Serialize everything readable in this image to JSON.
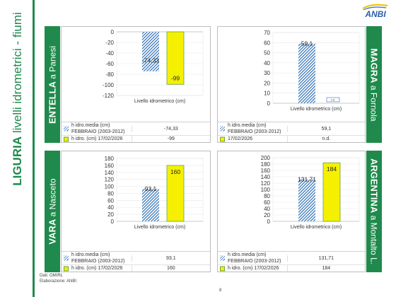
{
  "sidebar": {
    "title_bold": "LIGURIA",
    "title_rest": " livelli idrometrici - fiumi"
  },
  "footer": {
    "source": "Dati: OMIRL",
    "elaboration": "Elaborazione: ANBI",
    "page": "8"
  },
  "colors": {
    "green": "#1f8a4c",
    "blue": "#2f6fb7",
    "yellow": "#f5f000"
  },
  "chart_data": [
    {
      "type": "bar",
      "id": "entella",
      "river": "ENTELLA",
      "station": " a Panesi",
      "categories": [
        "Livello idrometrico (cm)"
      ],
      "xlabel": "Livello idrometrico (cm)",
      "ylim": [
        -120,
        0
      ],
      "yticks": [
        "0",
        "-20",
        "-40",
        "-60",
        "-80",
        "-100",
        "-120"
      ],
      "series": [
        {
          "name": "h idro.media (cm) FEBBRAIO (2003-2012)",
          "values": [
            -74.33
          ],
          "label": "-74,33"
        },
        {
          "name": "h idro. (cm) 17/02/2026",
          "values": [
            -99
          ],
          "label": "-99"
        }
      ]
    },
    {
      "type": "bar",
      "id": "magra",
      "river": "MAGRA",
      "station": " a Fornola",
      "categories": [
        "Livello idrometrico (cm)"
      ],
      "xlabel": "Livello idrometrico (cm)",
      "ylim": [
        0,
        70
      ],
      "yticks": [
        "70",
        "60",
        "50",
        "40",
        "30",
        "20",
        "10",
        "0"
      ],
      "series": [
        {
          "name": "h idro.media (cm) FEBBRAIO (2003-2012)",
          "values": [
            59.1
          ],
          "label": "59,1"
        },
        {
          "name": "17/02/2026",
          "values": [
            null
          ],
          "label": "n.d."
        }
      ]
    },
    {
      "type": "bar",
      "id": "vara",
      "river": "VARA",
      "station": " a Nasceto",
      "categories": [
        "Livello idrometrico (cm)"
      ],
      "xlabel": "Livello idrometrico (cm)",
      "ylim": [
        0,
        180
      ],
      "yticks": [
        "180",
        "160",
        "140",
        "120",
        "100",
        "80",
        "60",
        "40",
        "20",
        "0"
      ],
      "series": [
        {
          "name": "h idro.media (cm) FEBBRAIO (2003-2012)",
          "values": [
            93.1
          ],
          "label": "93,1"
        },
        {
          "name": "h idro. (cm) 17/02/2026",
          "values": [
            160
          ],
          "label": "160"
        }
      ]
    },
    {
      "type": "bar",
      "id": "argentina",
      "river": "ARGENTINA",
      "station": " a Montalto L.",
      "categories": [
        "Livello idrometrico (cm)"
      ],
      "xlabel": "Livello idrometrico (cm)",
      "ylim": [
        0,
        200
      ],
      "yticks": [
        "200",
        "180",
        "160",
        "140",
        "120",
        "100",
        "80",
        "60",
        "40",
        "20",
        "0"
      ],
      "series": [
        {
          "name": "h idro.media (cm) FEBBRAIO (2003-2012)",
          "values": [
            131.71
          ],
          "label": "131,71"
        },
        {
          "name": "h idro. (cm) 17/02/2026",
          "values": [
            184
          ],
          "label": "184"
        }
      ]
    }
  ]
}
